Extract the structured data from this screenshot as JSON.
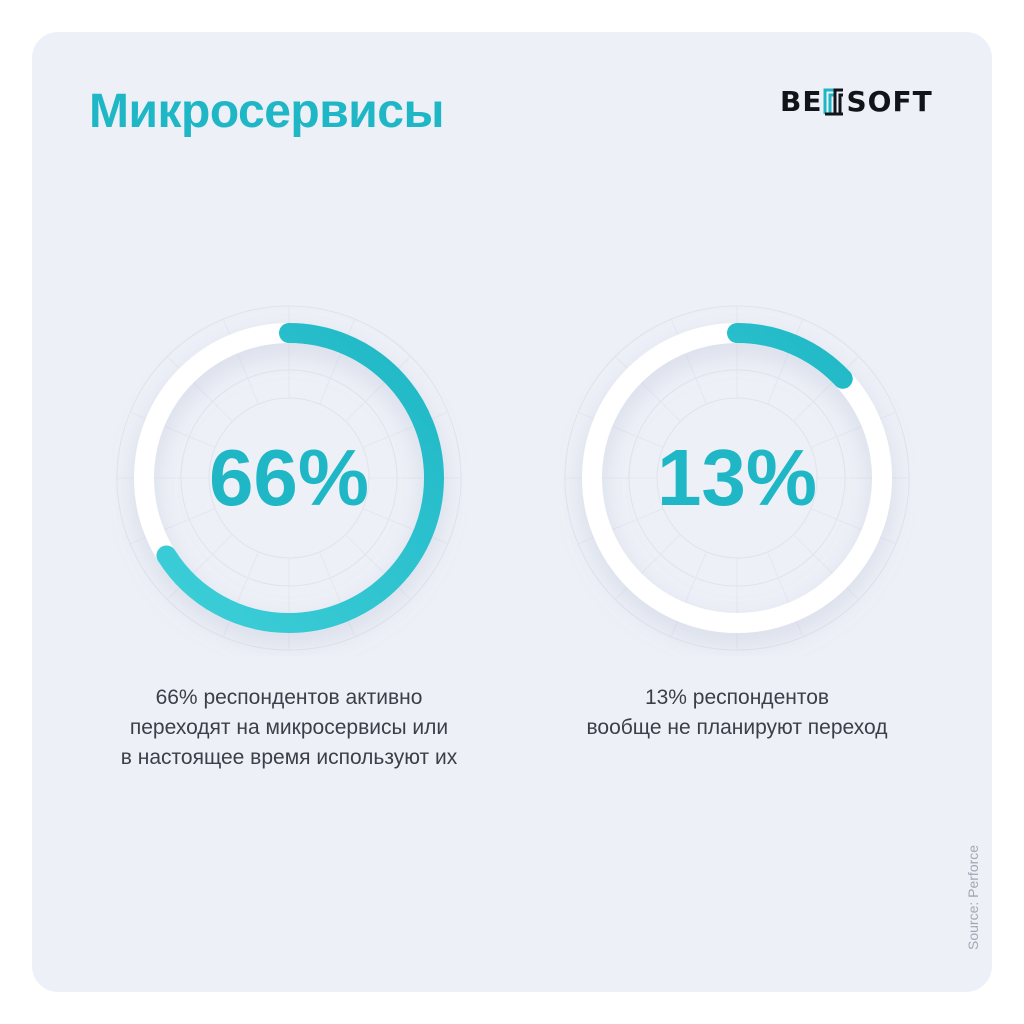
{
  "header": {
    "title": "Микросервисы",
    "brand": "BELLSOFT",
    "brand_parts": [
      "BE",
      "SOFT"
    ]
  },
  "colors": {
    "accent": "#1fb7c6",
    "accent_light": "#3fd0d9",
    "ring_track": "#ffffff",
    "card_bg": "#edf0f7",
    "text": "#3a3f4a",
    "source_text": "#a2a8b3"
  },
  "chart_data": [
    {
      "type": "pie",
      "values": [
        66
      ],
      "max": 100,
      "unit": "%",
      "center_label": "66%",
      "caption": [
        "66% респондентов активно",
        "переходят на микросервисы или",
        "в настоящее время используют их"
      ]
    },
    {
      "type": "pie",
      "values": [
        13
      ],
      "max": 100,
      "unit": "%",
      "center_label": "13%",
      "caption": [
        "13% респондентов",
        "вообще не планируют переход"
      ]
    }
  ],
  "source": "Source: Perforce"
}
